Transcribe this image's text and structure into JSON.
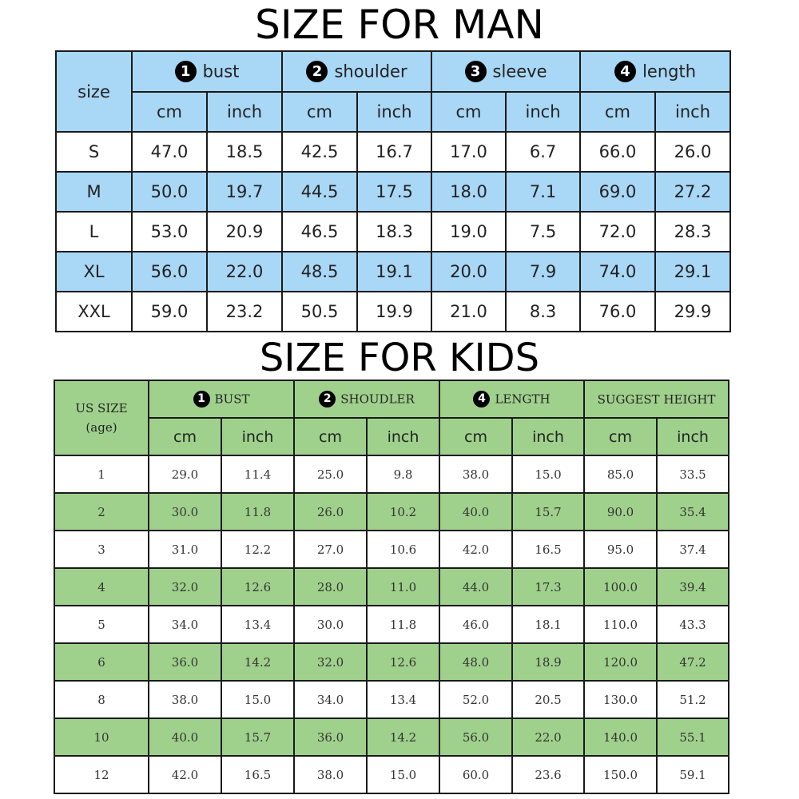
{
  "man": {
    "title": "SIZE FOR MAN",
    "size_label": "size",
    "groups": [
      {
        "num": "1",
        "label": "bust"
      },
      {
        "num": "2",
        "label": "shoulder"
      },
      {
        "num": "3",
        "label": "sleeve"
      },
      {
        "num": "4",
        "label": "length"
      }
    ],
    "units": [
      "cm",
      "inch",
      "cm",
      "inch",
      "cm",
      "inch",
      "cm",
      "inch"
    ],
    "rows": [
      [
        "S",
        "47.0",
        "18.5",
        "42.5",
        "16.7",
        "17.0",
        "6.7",
        "66.0",
        "26.0"
      ],
      [
        "M",
        "50.0",
        "19.7",
        "44.5",
        "17.5",
        "18.0",
        "7.1",
        "69.0",
        "27.2"
      ],
      [
        "L",
        "53.0",
        "20.9",
        "46.5",
        "18.3",
        "19.0",
        "7.5",
        "72.0",
        "28.3"
      ],
      [
        "XL",
        "56.0",
        "22.0",
        "48.5",
        "19.1",
        "20.0",
        "7.9",
        "74.0",
        "29.1"
      ],
      [
        "XXL",
        "59.0",
        "23.2",
        "50.5",
        "19.9",
        "21.0",
        "8.3",
        "76.0",
        "29.9"
      ]
    ],
    "row_color": "#a9d7f6"
  },
  "kids": {
    "title": "SIZE FOR KIDS",
    "size_label_1": "US SIZE",
    "size_label_2": "(age)",
    "groups": [
      {
        "num": "1",
        "label": "BUST"
      },
      {
        "num": "2",
        "label": "SHOUDLER"
      },
      {
        "num": "4",
        "label": "LENGTH"
      },
      {
        "num": "",
        "label": "SUGGEST HEIGHT"
      }
    ],
    "units": [
      "cm",
      "inch",
      "cm",
      "inch",
      "cm",
      "inch",
      "cm",
      "inch"
    ],
    "rows": [
      [
        "1",
        "29.0",
        "11.4",
        "25.0",
        "9.8",
        "38.0",
        "15.0",
        "85.0",
        "33.5"
      ],
      [
        "2",
        "30.0",
        "11.8",
        "26.0",
        "10.2",
        "40.0",
        "15.7",
        "90.0",
        "35.4"
      ],
      [
        "3",
        "31.0",
        "12.2",
        "27.0",
        "10.6",
        "42.0",
        "16.5",
        "95.0",
        "37.4"
      ],
      [
        "4",
        "32.0",
        "12.6",
        "28.0",
        "11.0",
        "44.0",
        "17.3",
        "100.0",
        "39.4"
      ],
      [
        "5",
        "34.0",
        "13.4",
        "30.0",
        "11.8",
        "46.0",
        "18.1",
        "110.0",
        "43.3"
      ],
      [
        "6",
        "36.0",
        "14.2",
        "32.0",
        "12.6",
        "48.0",
        "18.9",
        "120.0",
        "47.2"
      ],
      [
        "8",
        "38.0",
        "15.0",
        "34.0",
        "13.4",
        "52.0",
        "20.5",
        "130.0",
        "51.2"
      ],
      [
        "10",
        "40.0",
        "15.7",
        "36.0",
        "14.2",
        "56.0",
        "22.0",
        "140.0",
        "55.1"
      ],
      [
        "12",
        "42.0",
        "16.5",
        "38.0",
        "15.0",
        "60.0",
        "23.6",
        "150.0",
        "59.1"
      ]
    ],
    "row_color": "#9fd18c"
  }
}
